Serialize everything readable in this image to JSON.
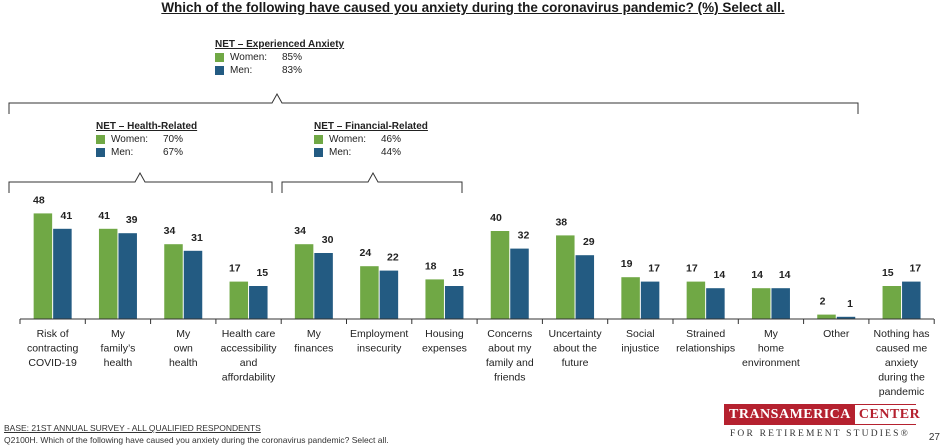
{
  "title": "Which of the following have caused you anxiety during the coronavirus pandemic? (%) Select all.",
  "nets": {
    "experienced": {
      "title": "NET – Experienced Anxiety",
      "women_label": "Women:",
      "women_value": "85%",
      "men_label": "Men:",
      "men_value": "83%"
    },
    "health": {
      "title": "NET – Health-Related",
      "women_label": "Women:",
      "women_value": "70%",
      "men_label": "Men:",
      "men_value": "67%"
    },
    "financial": {
      "title": "NET – Financial-Related",
      "women_label": "Women:",
      "women_value": "46%",
      "men_label": "Men:",
      "men_value": "44%"
    }
  },
  "chart_data": {
    "type": "bar",
    "categories": [
      [
        "Risk of",
        "contracting",
        "COVID-19"
      ],
      [
        "My",
        "family’s",
        "health"
      ],
      [
        "My",
        "own",
        "health"
      ],
      [
        "Health care",
        "accessibility",
        "and",
        "affordability"
      ],
      [
        "My",
        "finances"
      ],
      [
        "Employment",
        "insecurity"
      ],
      [
        "Housing",
        "expenses"
      ],
      [
        "Concerns",
        "about my",
        "family and",
        "friends"
      ],
      [
        "Uncertainty",
        "about the",
        "future"
      ],
      [
        "Social",
        "injustice"
      ],
      [
        "Strained",
        "relationships"
      ],
      [
        "My",
        "home",
        "environment"
      ],
      [
        "Other"
      ],
      [
        "Nothing has",
        "caused me",
        "anxiety",
        "during the",
        "pandemic"
      ]
    ],
    "series": [
      {
        "name": "Women",
        "color": "#70a845",
        "values": [
          48,
          41,
          34,
          17,
          34,
          24,
          18,
          40,
          38,
          19,
          17,
          14,
          2,
          15
        ]
      },
      {
        "name": "Men",
        "color": "#235b82",
        "values": [
          41,
          39,
          31,
          15,
          30,
          22,
          15,
          32,
          29,
          17,
          14,
          14,
          1,
          17
        ]
      }
    ],
    "ylim": [
      0,
      50
    ],
    "grid": false
  },
  "footer": {
    "base": "BASE: 21ST ANNUAL SURVEY - ALL QUALIFIED RESPONDENTS",
    "question": "Q2100H. Which of the following have caused you anxiety during the coronavirus pandemic? Select all."
  },
  "logo": {
    "word1": "TRANSAMERICA",
    "word2": "CENTER",
    "tagline": "FOR RETIREMENT STUDIES®"
  },
  "page_number": "27"
}
